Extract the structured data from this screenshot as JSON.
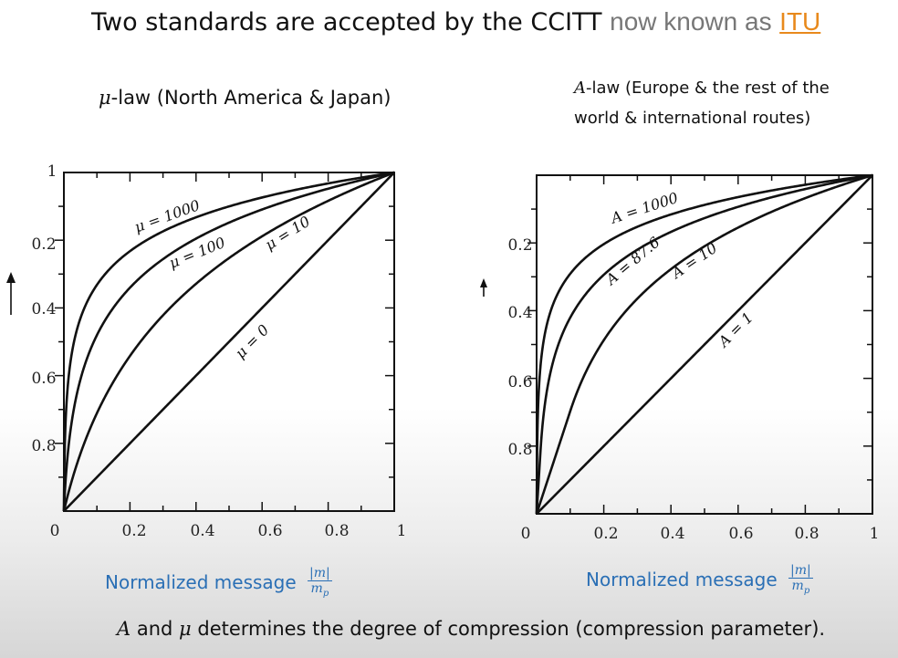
{
  "title": {
    "main": "Two standards are accepted by the CCITT",
    "gray": "now known as",
    "link": "ITU"
  },
  "left": {
    "symbol": "μ",
    "title_rest": "-law (North America & Japan)",
    "xcaption": "Normalized message",
    "frac_num": "|m|",
    "frac_den": "m",
    "frac_den_sub": "p"
  },
  "right": {
    "symbol": "A",
    "title_line1_rest": "-law (Europe & the rest of the",
    "title_line2": "world & international routes)",
    "xcaption": "Normalized message",
    "frac_num": "|m|",
    "frac_den": "m",
    "frac_den_sub": "p"
  },
  "footer": {
    "a": "A",
    "and": " and ",
    "mu": "μ",
    "rest": " determines the degree of compression (compression parameter)."
  },
  "colors": {
    "ink": "#111111",
    "caption": "#2a6fb5",
    "link": "#e8891c"
  },
  "chart_data": [
    {
      "type": "line",
      "law": "mu",
      "xlim": [
        0,
        1
      ],
      "ylim": [
        0,
        1
      ],
      "x_tick_labels": [
        "0",
        "0.2",
        "0.4",
        "0.6",
        "0.8",
        "1"
      ],
      "y_tick_labels": [
        "0.2",
        "0.4",
        "0.6",
        "0.8",
        "1"
      ],
      "series": [
        {
          "name": "μ = 1000",
          "param": 1000
        },
        {
          "name": "μ = 100",
          "param": 100
        },
        {
          "name": "μ = 10",
          "param": 10
        },
        {
          "name": "μ = 0",
          "param": 0
        }
      ]
    },
    {
      "type": "line",
      "law": "A",
      "xlim": [
        0,
        1
      ],
      "ylim": [
        0,
        1
      ],
      "x_tick_labels": [
        "0",
        "0.2",
        "0.4",
        "0.6",
        "0.8",
        "1"
      ],
      "y_tick_labels": [
        "0.2",
        "0.4",
        "0.6",
        "0.8"
      ],
      "series": [
        {
          "name": "A = 1000",
          "param": 1000
        },
        {
          "name": "A = 87.6",
          "param": 87.6
        },
        {
          "name": "A = 10",
          "param": 10
        },
        {
          "name": "A = 1",
          "param": 1
        }
      ]
    }
  ]
}
